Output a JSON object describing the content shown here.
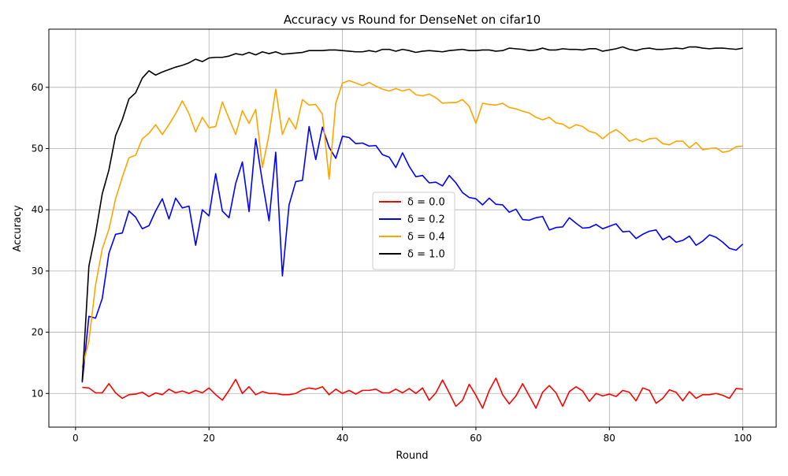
{
  "chart_data": {
    "type": "line",
    "title": "Accuracy vs Round for DenseNet on cifar10",
    "xlabel": "Round",
    "ylabel": "Accuracy",
    "xlim": [
      -4,
      105
    ],
    "ylim": [
      4.5,
      69.5
    ],
    "xticks": [
      0,
      20,
      40,
      60,
      80,
      100
    ],
    "yticks": [
      10,
      20,
      30,
      40,
      50,
      60
    ],
    "grid": true,
    "legend_position": "center-right",
    "x": [
      1,
      2,
      3,
      4,
      5,
      6,
      7,
      8,
      9,
      10,
      11,
      12,
      13,
      14,
      15,
      16,
      17,
      18,
      19,
      20,
      21,
      22,
      23,
      24,
      25,
      26,
      27,
      28,
      29,
      30,
      31,
      32,
      33,
      34,
      35,
      36,
      37,
      38,
      39,
      40,
      41,
      42,
      43,
      44,
      45,
      46,
      47,
      48,
      49,
      50,
      51,
      52,
      53,
      54,
      55,
      56,
      57,
      58,
      59,
      60,
      61,
      62,
      63,
      64,
      65,
      66,
      67,
      68,
      69,
      70,
      71,
      72,
      73,
      74,
      75,
      76,
      77,
      78,
      79,
      80,
      81,
      82,
      83,
      84,
      85,
      86,
      87,
      88,
      89,
      90,
      91,
      92,
      93,
      94,
      95,
      96,
      97,
      98,
      99,
      100
    ],
    "series": [
      {
        "name": "δ = 0.0",
        "color": "#ff0000",
        "values": [
          11.0,
          10.9,
          10.1,
          10.1,
          11.6,
          10.1,
          9.2,
          9.8,
          9.9,
          10.2,
          9.5,
          10.1,
          9.8,
          10.7,
          10.1,
          10.4,
          10.0,
          10.5,
          10.1,
          10.9,
          9.8,
          8.9,
          10.5,
          12.3,
          10.0,
          11.1,
          9.8,
          10.3,
          10.0,
          10.0,
          9.8,
          9.8,
          10.0,
          10.6,
          10.9,
          10.7,
          11.1,
          9.8,
          10.7,
          10.0,
          10.5,
          9.9,
          10.5,
          10.5,
          10.7,
          10.1,
          10.1,
          10.7,
          10.1,
          10.8,
          10.0,
          10.9,
          8.9,
          10.1,
          12.2,
          10.1,
          7.9,
          8.9,
          11.5,
          9.7,
          7.6,
          10.5,
          12.5,
          9.8,
          8.3,
          9.6,
          11.6,
          9.6,
          7.6,
          10.2,
          11.3,
          10.1,
          7.9,
          10.3,
          11.1,
          10.4,
          8.7,
          10.0,
          9.6,
          9.9,
          9.5,
          10.5,
          10.2,
          8.8,
          10.9,
          10.5,
          8.4,
          9.2,
          10.6,
          10.2,
          8.8,
          10.3,
          9.2,
          9.8,
          9.8,
          10.0,
          9.7,
          9.2,
          10.8,
          10.7
        ]
      },
      {
        "name": "δ = 0.2",
        "color": "#0000ff",
        "values": [
          11.8,
          22.6,
          22.3,
          25.5,
          32.9,
          36.0,
          36.2,
          39.8,
          38.8,
          36.9,
          37.4,
          39.8,
          41.8,
          38.5,
          41.9,
          40.3,
          40.6,
          34.2,
          40.0,
          39.0,
          45.9,
          39.8,
          38.7,
          44.3,
          47.8,
          39.7,
          51.6,
          44.6,
          38.2,
          49.4,
          29.2,
          40.8,
          44.6,
          44.8,
          53.6,
          48.2,
          53.5,
          50.2,
          48.4,
          52.0,
          51.8,
          50.8,
          50.9,
          50.4,
          50.5,
          49.0,
          48.6,
          46.9,
          49.3,
          47.1,
          45.4,
          45.6,
          44.4,
          44.5,
          43.9,
          45.6,
          44.4,
          42.8,
          42.0,
          41.8,
          40.8,
          41.9,
          40.9,
          40.8,
          39.6,
          40.1,
          38.4,
          38.3,
          38.7,
          38.9,
          36.7,
          37.1,
          37.2,
          38.7,
          37.8,
          37.0,
          37.1,
          37.6,
          36.9,
          37.3,
          37.7,
          36.4,
          36.5,
          35.3,
          36.0,
          36.5,
          36.7,
          35.1,
          35.7,
          34.7,
          35.0,
          35.7,
          34.2,
          34.9,
          35.9,
          35.5,
          34.7,
          33.7,
          33.4,
          34.4
        ]
      },
      {
        "name": "δ = 0.4",
        "color": "#ffa500",
        "values": [
          14.2,
          18.6,
          27.7,
          33.6,
          36.8,
          41.8,
          45.3,
          48.5,
          48.9,
          51.6,
          52.5,
          53.9,
          52.3,
          53.9,
          55.7,
          57.8,
          55.7,
          52.7,
          55.1,
          53.4,
          53.6,
          57.6,
          54.9,
          52.3,
          56.2,
          54.1,
          56.4,
          46.9,
          52.3,
          59.7,
          52.3,
          55.0,
          53.2,
          58.0,
          57.1,
          57.2,
          55.6,
          45.0,
          57.4,
          60.7,
          61.1,
          60.7,
          60.3,
          60.8,
          60.2,
          59.7,
          59.4,
          59.8,
          59.4,
          59.7,
          58.8,
          58.6,
          58.9,
          58.3,
          57.4,
          57.5,
          57.5,
          58.0,
          56.9,
          54.1,
          57.4,
          57.2,
          57.1,
          57.4,
          56.7,
          56.5,
          56.1,
          55.8,
          55.1,
          54.7,
          55.1,
          54.2,
          54.0,
          53.3,
          53.9,
          53.6,
          52.8,
          52.5,
          51.6,
          52.5,
          53.1,
          52.3,
          51.2,
          51.6,
          51.1,
          51.6,
          51.7,
          50.8,
          50.6,
          51.2,
          51.2,
          50.1,
          51.0,
          49.8,
          50.0,
          50.1,
          49.4,
          49.6,
          50.3,
          50.4
        ]
      },
      {
        "name": "δ = 1.0",
        "color": "#000000",
        "values": [
          12.0,
          30.8,
          36.1,
          42.6,
          46.5,
          52.1,
          54.7,
          58.1,
          59.1,
          61.5,
          62.7,
          62.0,
          62.5,
          62.9,
          63.3,
          63.6,
          64.0,
          64.6,
          64.2,
          64.8,
          64.9,
          64.9,
          65.1,
          65.5,
          65.3,
          65.7,
          65.3,
          65.8,
          65.5,
          65.8,
          65.4,
          65.5,
          65.6,
          65.7,
          66.0,
          66.0,
          66.0,
          66.1,
          66.1,
          66.0,
          65.9,
          65.8,
          65.8,
          66.0,
          65.8,
          66.2,
          66.2,
          65.9,
          66.2,
          66.0,
          65.7,
          65.9,
          66.0,
          65.9,
          65.8,
          66.0,
          66.1,
          66.2,
          66.0,
          66.0,
          66.1,
          66.1,
          65.9,
          66.0,
          66.4,
          66.3,
          66.2,
          66.0,
          66.1,
          66.4,
          66.1,
          66.1,
          66.3,
          66.2,
          66.2,
          66.1,
          66.3,
          66.3,
          65.9,
          66.1,
          66.3,
          66.6,
          66.2,
          66.0,
          66.3,
          66.4,
          66.2,
          66.2,
          66.3,
          66.4,
          66.3,
          66.6,
          66.6,
          66.4,
          66.3,
          66.4,
          66.4,
          66.3,
          66.2,
          66.4
        ]
      }
    ]
  }
}
